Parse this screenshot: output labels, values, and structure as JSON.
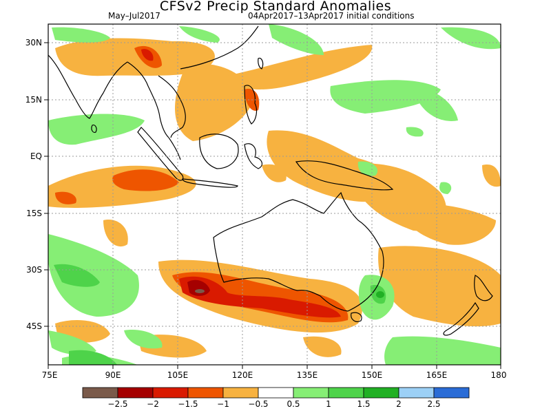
{
  "title": "CFSv2 Precip Standard Anomalies",
  "subtitle_left": "May–Jul2017",
  "subtitle_right": "04Apr2017–13Apr2017 initial conditions",
  "lat_labels": [
    "30N",
    "15N",
    "EQ",
    "15S",
    "30S",
    "45S"
  ],
  "lon_labels": [
    "75E",
    "90E",
    "105E",
    "120E",
    "135E",
    "150E",
    "165E",
    "180"
  ],
  "colorbar": {
    "colors": [
      "#7a5a4a",
      "#a50000",
      "#d91a00",
      "#ee5500",
      "#f7b240",
      "#ffffff",
      "#86ee75",
      "#4ed34a",
      "#21b024",
      "#9cd0f6",
      "#2a6cd6"
    ],
    "labels": [
      "-2.5",
      "-2",
      "-1.5",
      "-1",
      "-0.5",
      "0.5",
      "1",
      "1.5",
      "2",
      "2.5"
    ]
  },
  "colors": {
    "dry1": "#f7b240",
    "dry2": "#ee5500",
    "dry3": "#d91a00",
    "dry4": "#a50000",
    "dry5": "#7a5a4a",
    "wet1": "#86ee75",
    "wet2": "#4ed34a",
    "wet3": "#21b024"
  }
}
